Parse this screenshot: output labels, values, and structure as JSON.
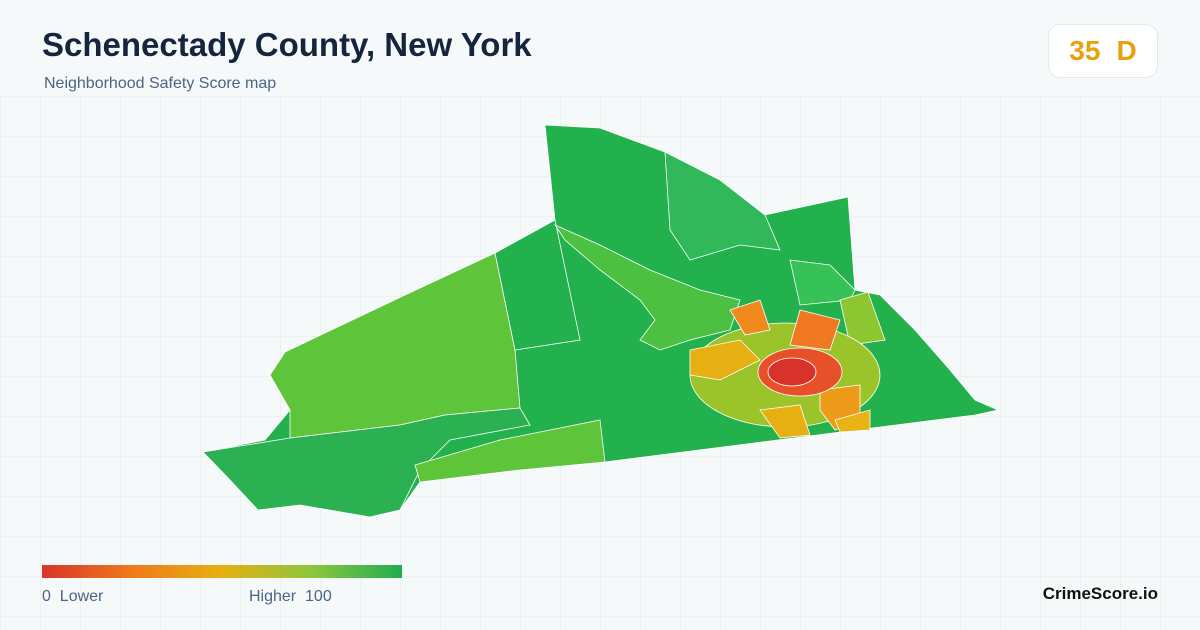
{
  "header": {
    "title": "Schenectady County, New York",
    "subtitle": "Neighborhood Safety Score map"
  },
  "score": {
    "value": 35,
    "grade": "D"
  },
  "legend": {
    "min": 0,
    "min_label": "Lower",
    "max_label": "Higher",
    "max": 100
  },
  "footer": {
    "brand": "CrimeScore.io"
  }
}
